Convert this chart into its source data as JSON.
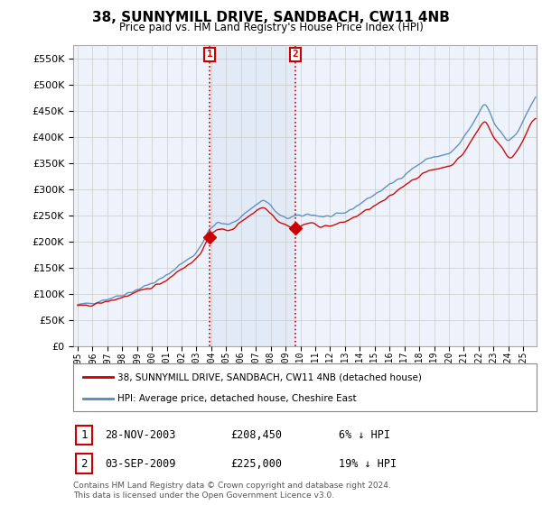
{
  "title": "38, SUNNYMILL DRIVE, SANDBACH, CW11 4NB",
  "subtitle": "Price paid vs. HM Land Registry's House Price Index (HPI)",
  "legend_line1": "38, SUNNYMILL DRIVE, SANDBACH, CW11 4NB (detached house)",
  "legend_line2": "HPI: Average price, detached house, Cheshire East",
  "footer1": "Contains HM Land Registry data © Crown copyright and database right 2024.",
  "footer2": "This data is licensed under the Open Government Licence v3.0.",
  "sale1_label": "1",
  "sale1_date": "28-NOV-2003",
  "sale1_price": "£208,450",
  "sale1_hpi": "6% ↓ HPI",
  "sale2_label": "2",
  "sale2_date": "03-SEP-2009",
  "sale2_price": "£225,000",
  "sale2_hpi": "19% ↓ HPI",
  "sale1_year": 2003.9,
  "sale2_year": 2009.67,
  "sale1_value": 208450,
  "sale2_value": 225000,
  "ylim": [
    0,
    575000
  ],
  "yticks": [
    0,
    50000,
    100000,
    150000,
    200000,
    250000,
    300000,
    350000,
    400000,
    450000,
    500000,
    550000
  ],
  "red_color": "#cc0000",
  "blue_color": "#5588bb",
  "blue_fill": "#dde8f5",
  "background_color": "#ffffff",
  "grid_color": "#cccccc",
  "plot_bg": "#eef2fa"
}
